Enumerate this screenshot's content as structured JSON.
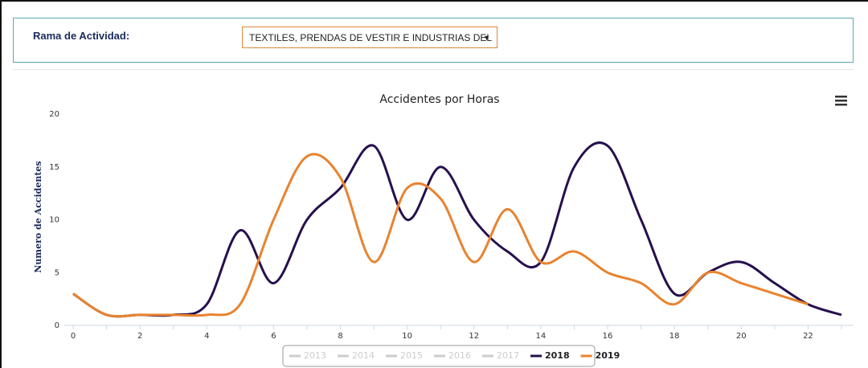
{
  "filter": {
    "label": "Rama de Actividad:",
    "selected": "TEXTILES, PRENDAS DE VESTIR E INDUSTRIAS DEL"
  },
  "chart_data": {
    "type": "line",
    "title": "Accidentes por Horas",
    "y_label": "Numero de Accidentes",
    "x": [
      0,
      1,
      2,
      3,
      4,
      5,
      6,
      7,
      8,
      9,
      10,
      11,
      12,
      13,
      14,
      15,
      16,
      17,
      18,
      19,
      20,
      21,
      22,
      23
    ],
    "xlim": [
      0,
      23
    ],
    "xticks": [
      0,
      2,
      4,
      6,
      8,
      10,
      12,
      14,
      16,
      18,
      20,
      22
    ],
    "ylim": [
      0,
      20
    ],
    "yticks": [
      0,
      5,
      10,
      15,
      20
    ],
    "grid": false,
    "smooth": true,
    "legend": "bottom",
    "series": [
      {
        "name": "2013",
        "visible": false
      },
      {
        "name": "2014",
        "visible": false
      },
      {
        "name": "2015",
        "visible": false
      },
      {
        "name": "2016",
        "visible": false
      },
      {
        "name": "2017",
        "visible": false
      },
      {
        "name": "2018",
        "color": "#26104d",
        "visible": true,
        "values": [
          3,
          1,
          1,
          1,
          2,
          9,
          4,
          10,
          13,
          17,
          10,
          15,
          10,
          7,
          6,
          15,
          17,
          10,
          3,
          5,
          6,
          4,
          2,
          1
        ]
      },
      {
        "name": "2019",
        "color": "#e8832f",
        "visible": true,
        "values": [
          3,
          1,
          1,
          1,
          1,
          2,
          10,
          16,
          14,
          6,
          13,
          12,
          6,
          11,
          6,
          7,
          5,
          4,
          2,
          5,
          4,
          3,
          2,
          null
        ]
      }
    ]
  }
}
